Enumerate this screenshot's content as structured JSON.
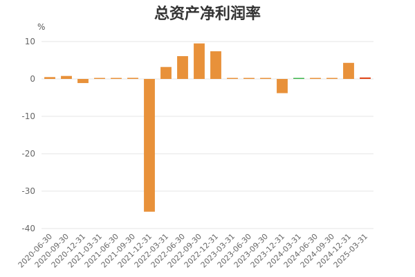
{
  "chart_data": {
    "type": "bar",
    "title": "总资产净利润率",
    "ylabel": "%",
    "xlabel": "",
    "ylim": [
      -40,
      10
    ],
    "yticks": [
      10,
      0,
      -10,
      -20,
      -30,
      -40
    ],
    "grid": true,
    "categories": [
      "2020-06-30",
      "2020-09-30",
      "2020-12-31",
      "2021-03-31",
      "2021-06-30",
      "2021-09-30",
      "2021-12-31",
      "2022-03-31",
      "2022-06-30",
      "2022-09-30",
      "2022-12-31",
      "2023-03-31",
      "2023-06-30",
      "2023-09-30",
      "2023-12-31",
      "2024-03-31",
      "2024-06-30",
      "2024-09-30",
      "2024-12-31",
      "2025-03-31"
    ],
    "values": [
      0.5,
      0.8,
      -1.1,
      0.2,
      0.2,
      0.3,
      -35.5,
      3.2,
      6.1,
      9.5,
      7.4,
      0.1,
      0.1,
      0.1,
      -3.8,
      0.2,
      0.2,
      0.2,
      4.3,
      0.4
    ],
    "colors": [
      "#e8913a",
      "#e8913a",
      "#e8913a",
      "#e8913a",
      "#e8913a",
      "#e8913a",
      "#e8913a",
      "#e8913a",
      "#e8913a",
      "#e8913a",
      "#e8913a",
      "#e8913a",
      "#e8913a",
      "#e8913a",
      "#e8913a",
      "#3cb44b",
      "#e8913a",
      "#e8913a",
      "#e8913a",
      "#e04a1f"
    ]
  }
}
